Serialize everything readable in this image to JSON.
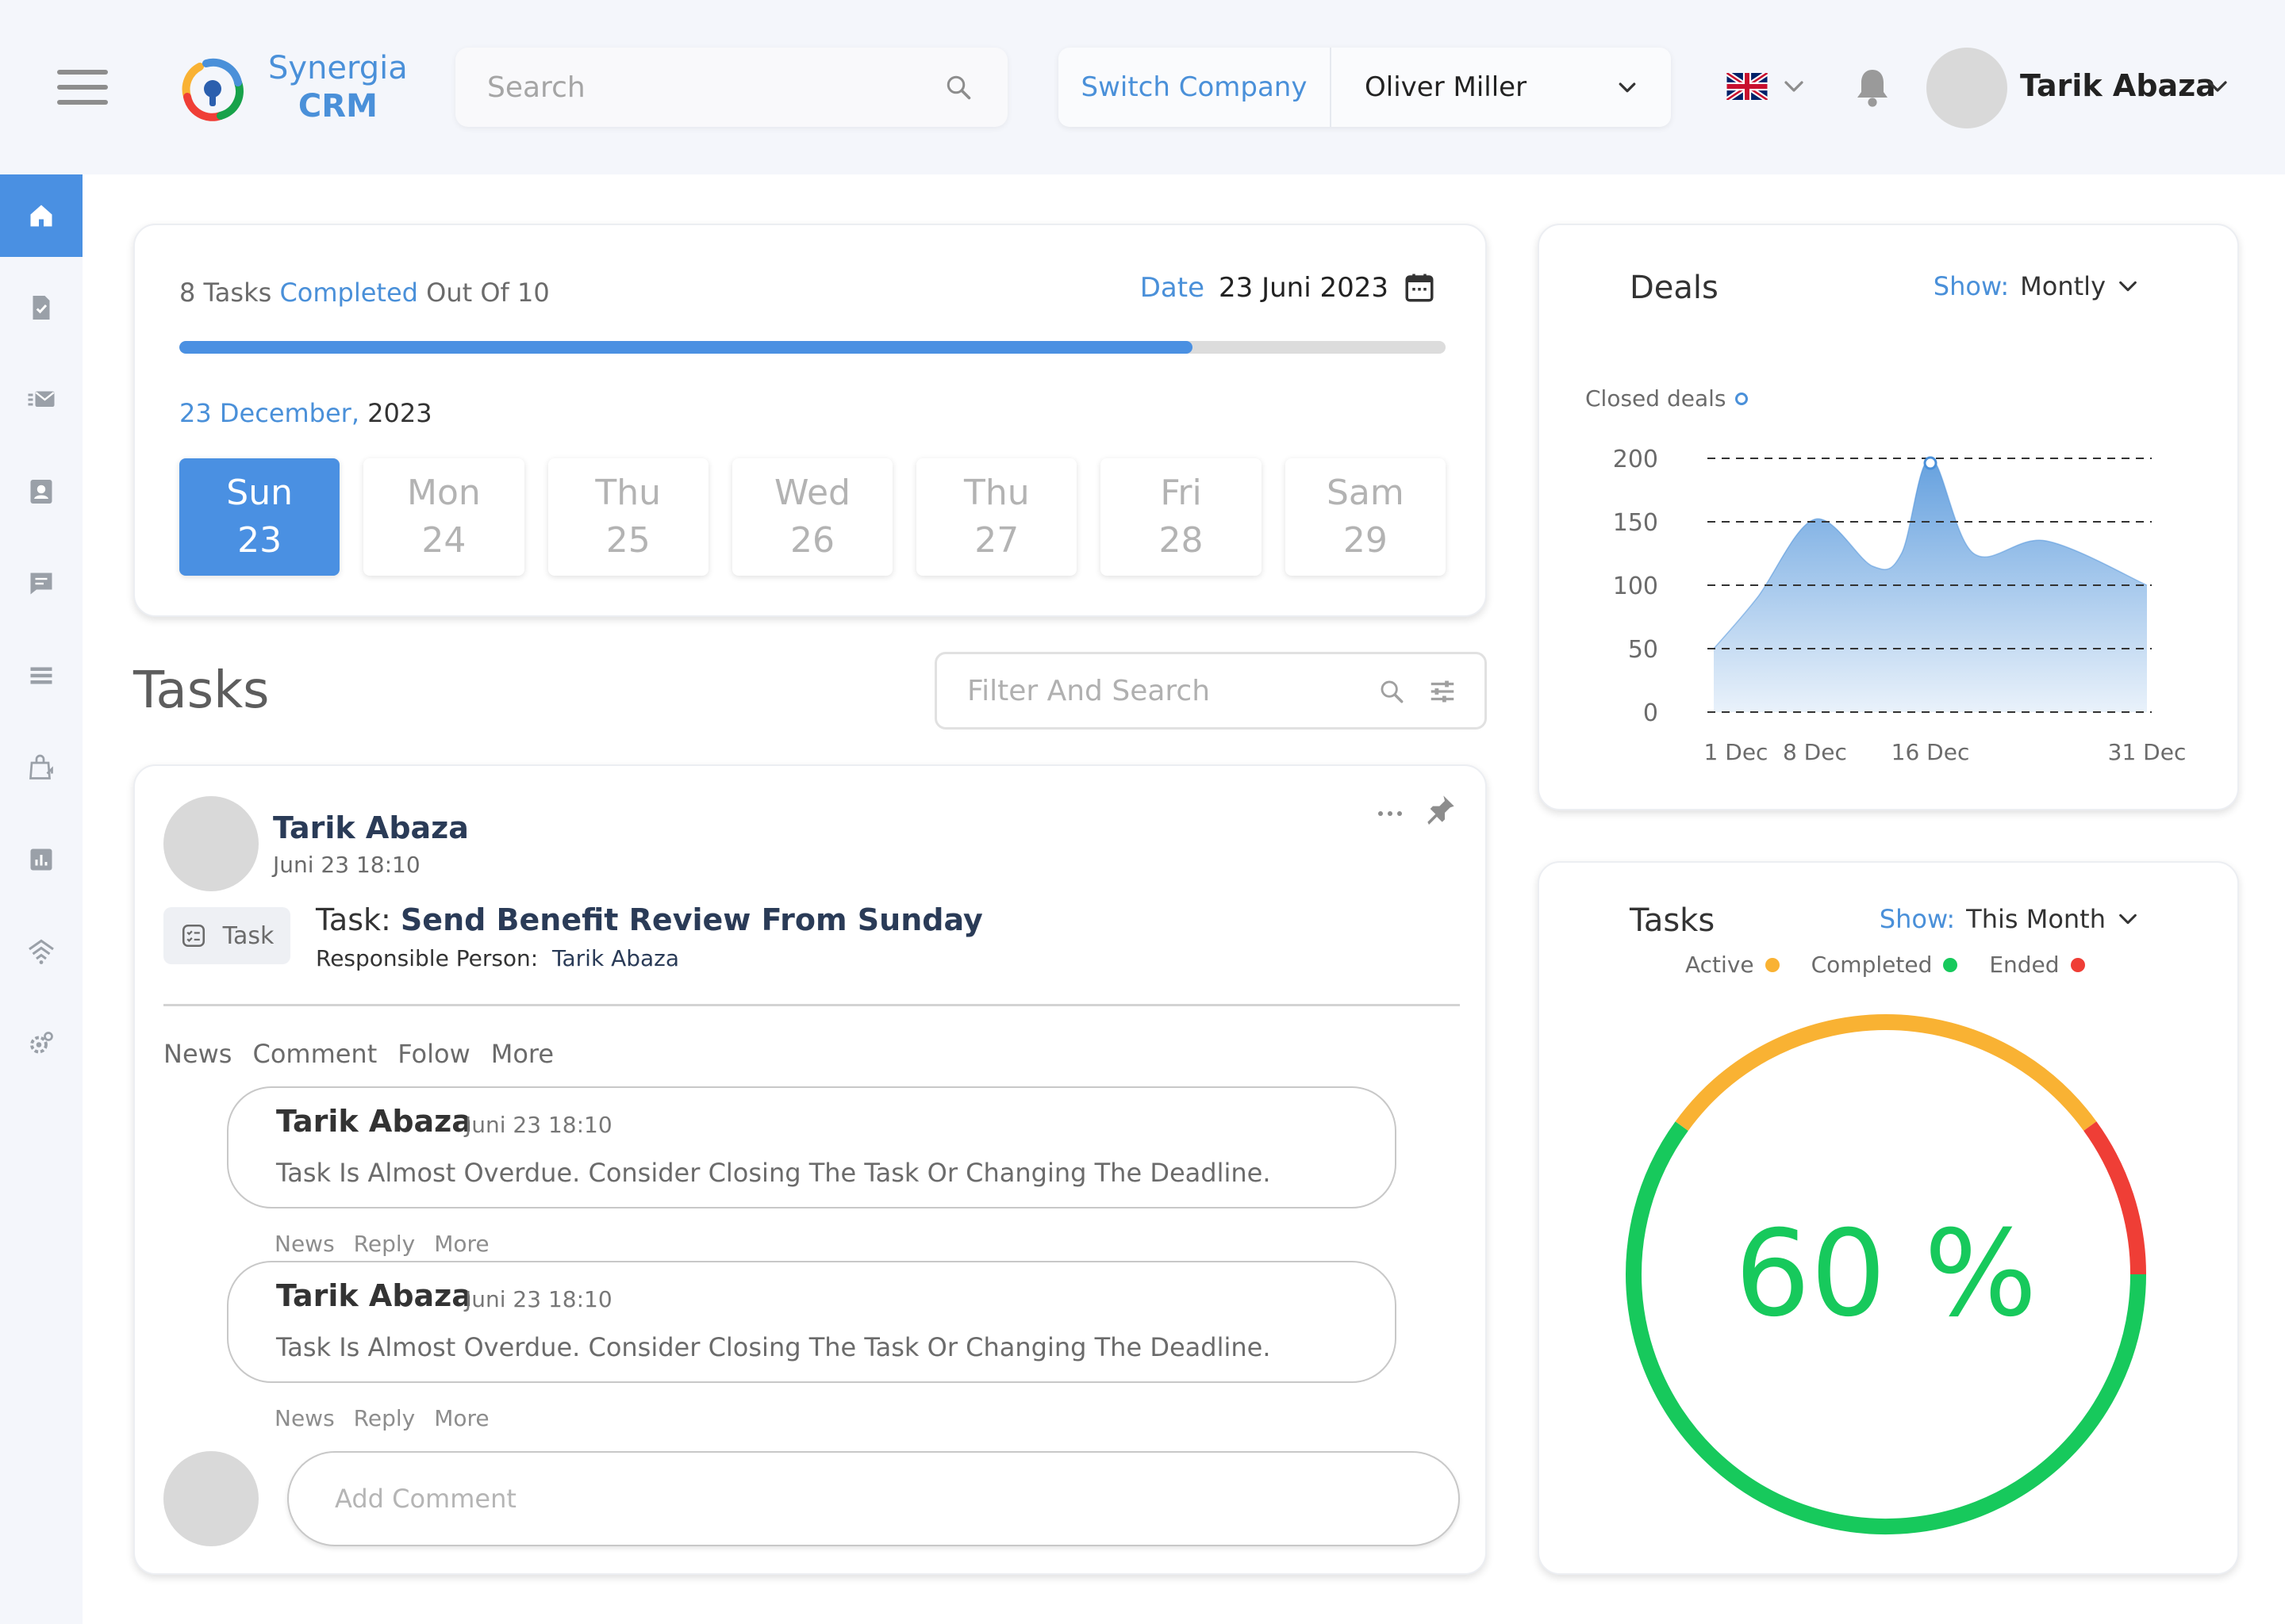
{
  "header": {
    "logo": {
      "line1": "Synergia",
      "line2": "CRM"
    },
    "search_placeholder": "Search",
    "switch_company_label": "Switch Company",
    "company_name": "Oliver Miller",
    "language_flag": "uk-flag-icon",
    "user_name": "Tarik Abaza"
  },
  "sidebar": {
    "items": [
      {
        "icon": "home-icon",
        "active": true
      },
      {
        "icon": "document-check-icon"
      },
      {
        "icon": "mail-list-icon"
      },
      {
        "icon": "contact-card-icon"
      },
      {
        "icon": "chat-icon"
      },
      {
        "icon": "list-icon"
      },
      {
        "icon": "shopping-bag-icon"
      },
      {
        "icon": "bar-chart-icon"
      },
      {
        "icon": "signal-icon"
      },
      {
        "icon": "settings-icon"
      }
    ]
  },
  "progress": {
    "count_prefix": "8 Tasks ",
    "count_highlight": "Completed",
    "count_suffix": " Out Of 10",
    "date_label": "Date",
    "date_value": "23 Juni 2023",
    "completed_fraction": 0.8,
    "month_highlight": "23 December,",
    "month_year": " 2023",
    "days": [
      {
        "name": "Sun",
        "num": "23",
        "selected": true
      },
      {
        "name": "Mon",
        "num": "24"
      },
      {
        "name": "Thu",
        "num": "25"
      },
      {
        "name": "Wed",
        "num": "26"
      },
      {
        "name": "Thu",
        "num": "27"
      },
      {
        "name": "Fri",
        "num": "28"
      },
      {
        "name": "Sam",
        "num": "29"
      }
    ]
  },
  "tasks_section": {
    "title": "Tasks",
    "filter_placeholder": "Filter And Search"
  },
  "task_card": {
    "author": "Tarik Abaza",
    "time": "Juni 23 18:10",
    "badge": "Task",
    "task_label": "Task:",
    "task_title": "Send Benefit Review From Sunday",
    "responsible_label": "Responsible Person:",
    "responsible_name": "Tarik Abaza",
    "tabs": [
      "News",
      "Comment",
      "Folow",
      "More"
    ],
    "comments": [
      {
        "author": "Tarik Abaza",
        "time": "Juni 23 18:10",
        "text": "Task Is Almost Overdue. Consider Closing The Task Or Changing The Deadline.",
        "actions": [
          "News",
          "Reply",
          "More"
        ]
      },
      {
        "author": "Tarik Abaza",
        "time": "Juni 23 18:10",
        "text": "Task Is Almost Overdue. Consider Closing The Task Or Changing The Deadline.",
        "actions": [
          "News",
          "Reply",
          "More"
        ]
      }
    ],
    "add_comment_placeholder": "Add Comment"
  },
  "deals": {
    "title": "Deals",
    "show_label": "Show:",
    "show_value": "Montly"
  },
  "tasks_widget": {
    "title": "Tasks",
    "show_label": "Show:",
    "show_value": "This Month",
    "legend": [
      {
        "name": "Active",
        "color": "#f9b233"
      },
      {
        "name": "Completed",
        "color": "#17c95c"
      },
      {
        "name": "Ended",
        "color": "#ef3e36"
      }
    ],
    "center_label": "60 %"
  },
  "chart_data": [
    {
      "type": "area",
      "title": "",
      "series": [
        {
          "name": "Closed deals",
          "x": [
            "1 Dec",
            "4 Dec",
            "8 Dec",
            "12 Dec",
            "14 Dec",
            "16 Dec",
            "19 Dec",
            "24 Dec",
            "31 Dec"
          ],
          "values": [
            50,
            90,
            152,
            115,
            125,
            200,
            125,
            135,
            100
          ]
        }
      ],
      "x_tick_labels": [
        "1 Dec",
        "8 Dec",
        "16 Dec",
        "31 Dec"
      ],
      "y_ticks": [
        0,
        50,
        100,
        150,
        200
      ],
      "ylim": [
        0,
        200
      ],
      "grid": "dashed horizontal",
      "highlight_point": {
        "x": "16 Dec",
        "y": 200
      },
      "color": "#4a90d9"
    },
    {
      "type": "pie",
      "title": "",
      "categories": [
        "Completed",
        "Active",
        "Ended"
      ],
      "values": [
        60,
        30,
        10
      ],
      "colors": [
        "#17c95c",
        "#f9b233",
        "#ef3e36"
      ],
      "center_label": "60 %"
    }
  ]
}
